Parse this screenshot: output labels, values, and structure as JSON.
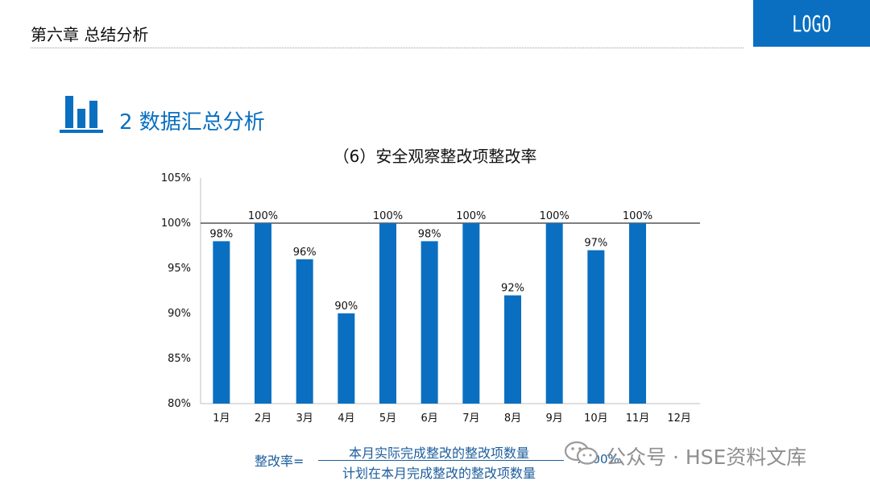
{
  "header": {
    "chapter_title": "第六章 总结分析",
    "logo": "LOGO"
  },
  "section": {
    "title": "2 数据汇总分析",
    "icon": "bar-chart-icon"
  },
  "colors": {
    "accent": "#0a6fc1",
    "bar": "#0a6fc1",
    "formula": "#1c5d9c",
    "reference_line": "#333333"
  },
  "chart_data": {
    "type": "bar",
    "title": "（6）安全观察整改项整改率",
    "categories": [
      "1月",
      "2月",
      "3月",
      "4月",
      "5月",
      "6月",
      "7月",
      "8月",
      "9月",
      "10月",
      "11月",
      "12月"
    ],
    "values": [
      98,
      100,
      96,
      90,
      100,
      98,
      100,
      92,
      100,
      97,
      100,
      null
    ],
    "data_labels": [
      "98%",
      "100%",
      "96%",
      "90%",
      "100%",
      "98%",
      "100%",
      "92%",
      "100%",
      "97%",
      "100%",
      ""
    ],
    "ylim": [
      80,
      105
    ],
    "yticks": [
      80,
      85,
      90,
      95,
      100,
      105
    ],
    "ytick_labels": [
      "80%",
      "85%",
      "90%",
      "95%",
      "100%",
      "105%"
    ],
    "reference_line": 100,
    "grid": false,
    "legend": "none",
    "xlabel": "",
    "ylabel": ""
  },
  "formula": {
    "label": "整改率=",
    "numerator": "本月实际完成整改的整改项数量",
    "denominator": "计划在本月完成整改的整改项数量",
    "multiplier": "x100%"
  },
  "watermark": {
    "text": "公众号 · HSE资料文库",
    "icon": "wechat-icon"
  }
}
